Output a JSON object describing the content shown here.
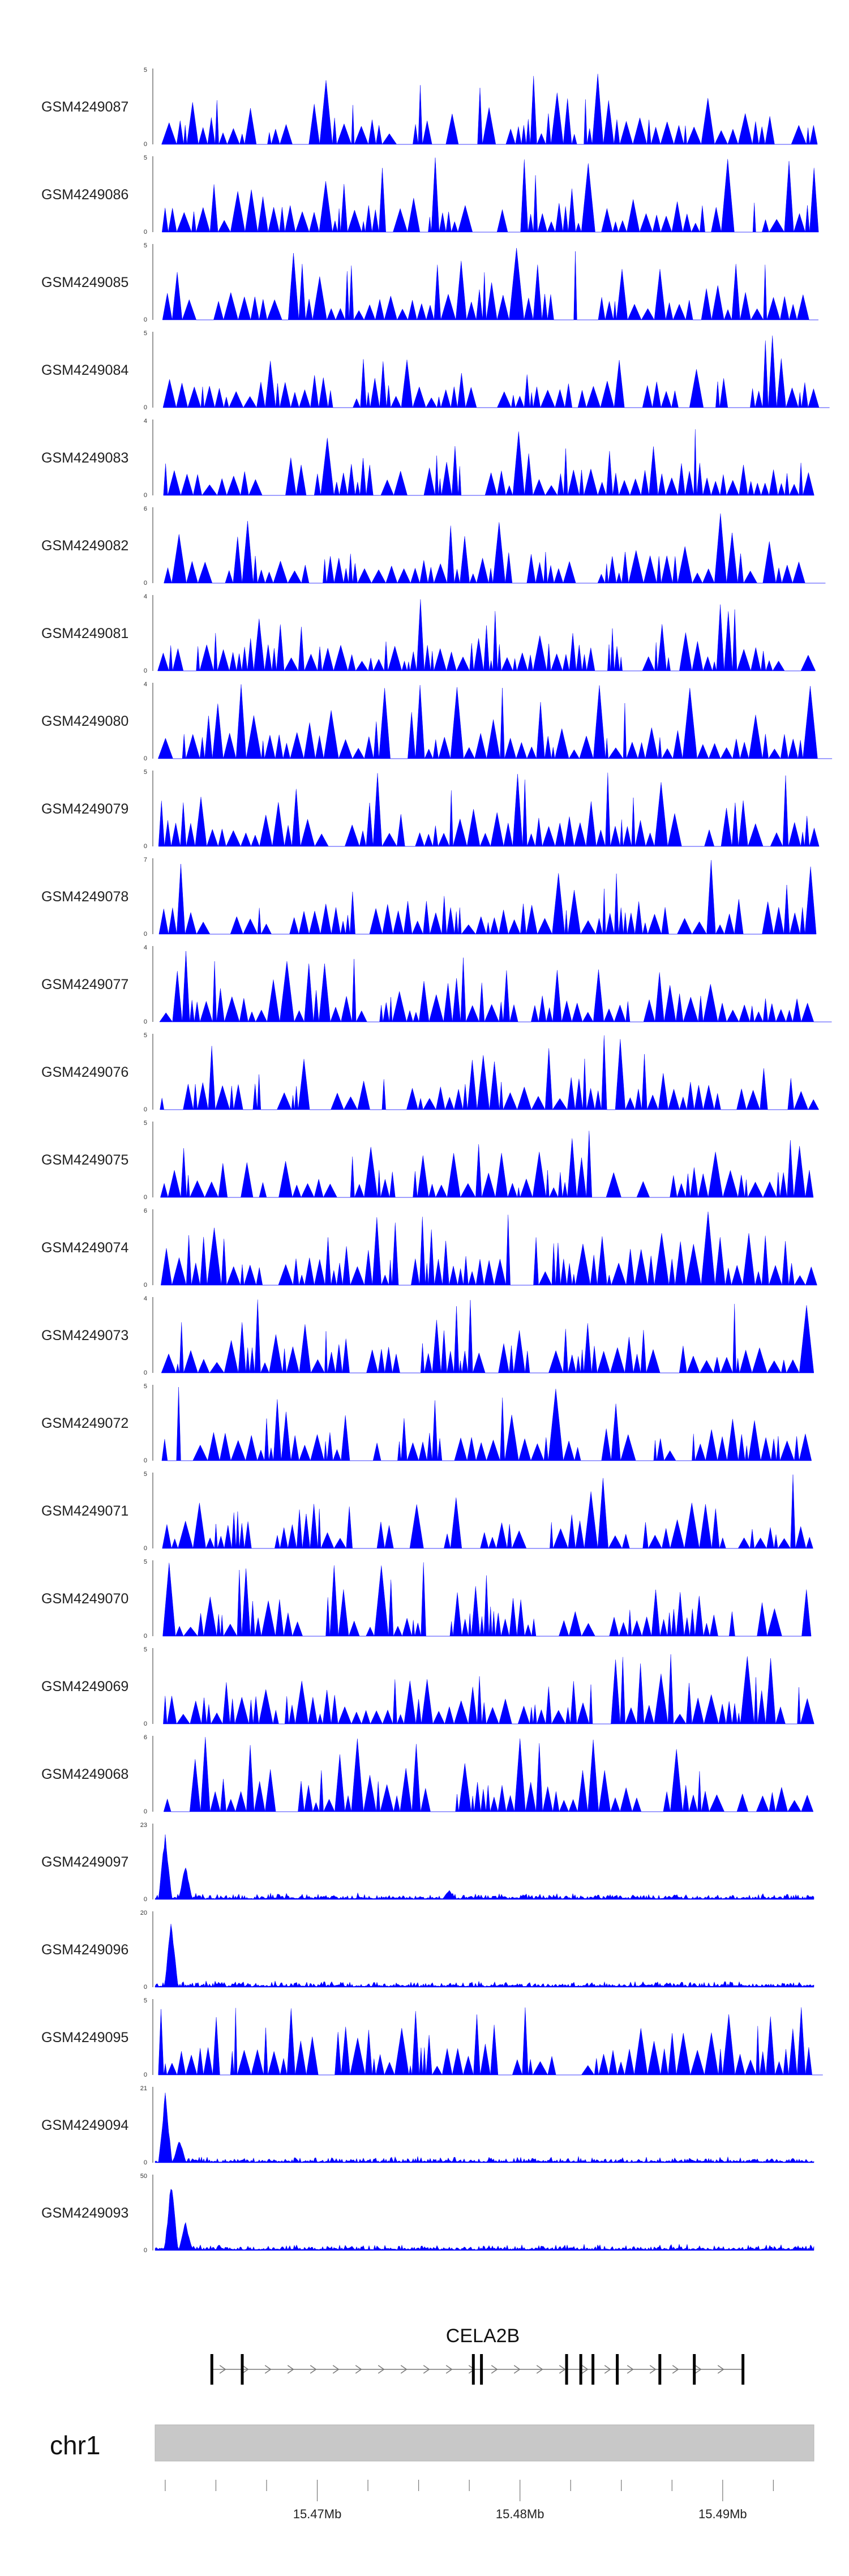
{
  "chart_data": {
    "type": "area",
    "title": "",
    "color": "#0000ff",
    "chromosome": "chr1",
    "x_range": [
      15.462,
      15.4945
    ],
    "x_ticks": [
      {
        "value": 15.47,
        "label": "15.47Mb"
      },
      {
        "value": 15.48,
        "label": "15.48Mb"
      },
      {
        "value": 15.49,
        "label": "15.49Mb"
      }
    ],
    "gene": {
      "name": "CELA2B",
      "strand": "+",
      "start": 15.4648,
      "end": 15.491,
      "exons": [
        15.4648,
        15.4663,
        15.4777,
        15.4781,
        15.4823,
        15.483,
        15.4836,
        15.4848,
        15.4869,
        15.4886,
        15.491
      ]
    },
    "tracks": [
      {
        "name": "GSM4249087",
        "ymax": 5,
        "style": "spiky"
      },
      {
        "name": "GSM4249086",
        "ymax": 5,
        "style": "spiky"
      },
      {
        "name": "GSM4249085",
        "ymax": 5,
        "style": "spiky"
      },
      {
        "name": "GSM4249084",
        "ymax": 5,
        "style": "spiky"
      },
      {
        "name": "GSM4249083",
        "ymax": 4,
        "style": "spiky"
      },
      {
        "name": "GSM4249082",
        "ymax": 6,
        "style": "spiky"
      },
      {
        "name": "GSM4249081",
        "ymax": 4,
        "style": "spiky"
      },
      {
        "name": "GSM4249080",
        "ymax": 4,
        "style": "spiky"
      },
      {
        "name": "GSM4249079",
        "ymax": 5,
        "style": "spiky"
      },
      {
        "name": "GSM4249078",
        "ymax": 7,
        "style": "spiky"
      },
      {
        "name": "GSM4249077",
        "ymax": 4,
        "style": "spiky"
      },
      {
        "name": "GSM4249076",
        "ymax": 5,
        "style": "spiky"
      },
      {
        "name": "GSM4249075",
        "ymax": 5,
        "style": "spiky"
      },
      {
        "name": "GSM4249074",
        "ymax": 6,
        "style": "spiky"
      },
      {
        "name": "GSM4249073",
        "ymax": 4,
        "style": "spiky"
      },
      {
        "name": "GSM4249072",
        "ymax": 5,
        "style": "spiky"
      },
      {
        "name": "GSM4249071",
        "ymax": 5,
        "style": "spiky"
      },
      {
        "name": "GSM4249070",
        "ymax": 5,
        "style": "spiky"
      },
      {
        "name": "GSM4249069",
        "ymax": 5,
        "style": "spiky"
      },
      {
        "name": "GSM4249068",
        "ymax": 6,
        "style": "spiky"
      },
      {
        "name": "GSM4249097",
        "ymax": 23,
        "style": "dense",
        "peaks": [
          {
            "pos": 15.4625,
            "height": 21
          },
          {
            "pos": 15.4635,
            "height": 11
          },
          {
            "pos": 15.4765,
            "height": 3
          }
        ]
      },
      {
        "name": "GSM4249096",
        "ymax": 20,
        "style": "dense",
        "peaks": [
          {
            "pos": 15.4628,
            "height": 19
          }
        ]
      },
      {
        "name": "GSM4249095",
        "ymax": 5,
        "style": "spiky"
      },
      {
        "name": "GSM4249094",
        "ymax": 21,
        "style": "dense",
        "peaks": [
          {
            "pos": 15.4625,
            "height": 20
          },
          {
            "pos": 15.4632,
            "height": 7
          }
        ]
      },
      {
        "name": "GSM4249093",
        "ymax": 50,
        "style": "dense",
        "peaks": [
          {
            "pos": 15.4628,
            "height": 48
          },
          {
            "pos": 15.4635,
            "height": 20
          }
        ]
      }
    ]
  }
}
